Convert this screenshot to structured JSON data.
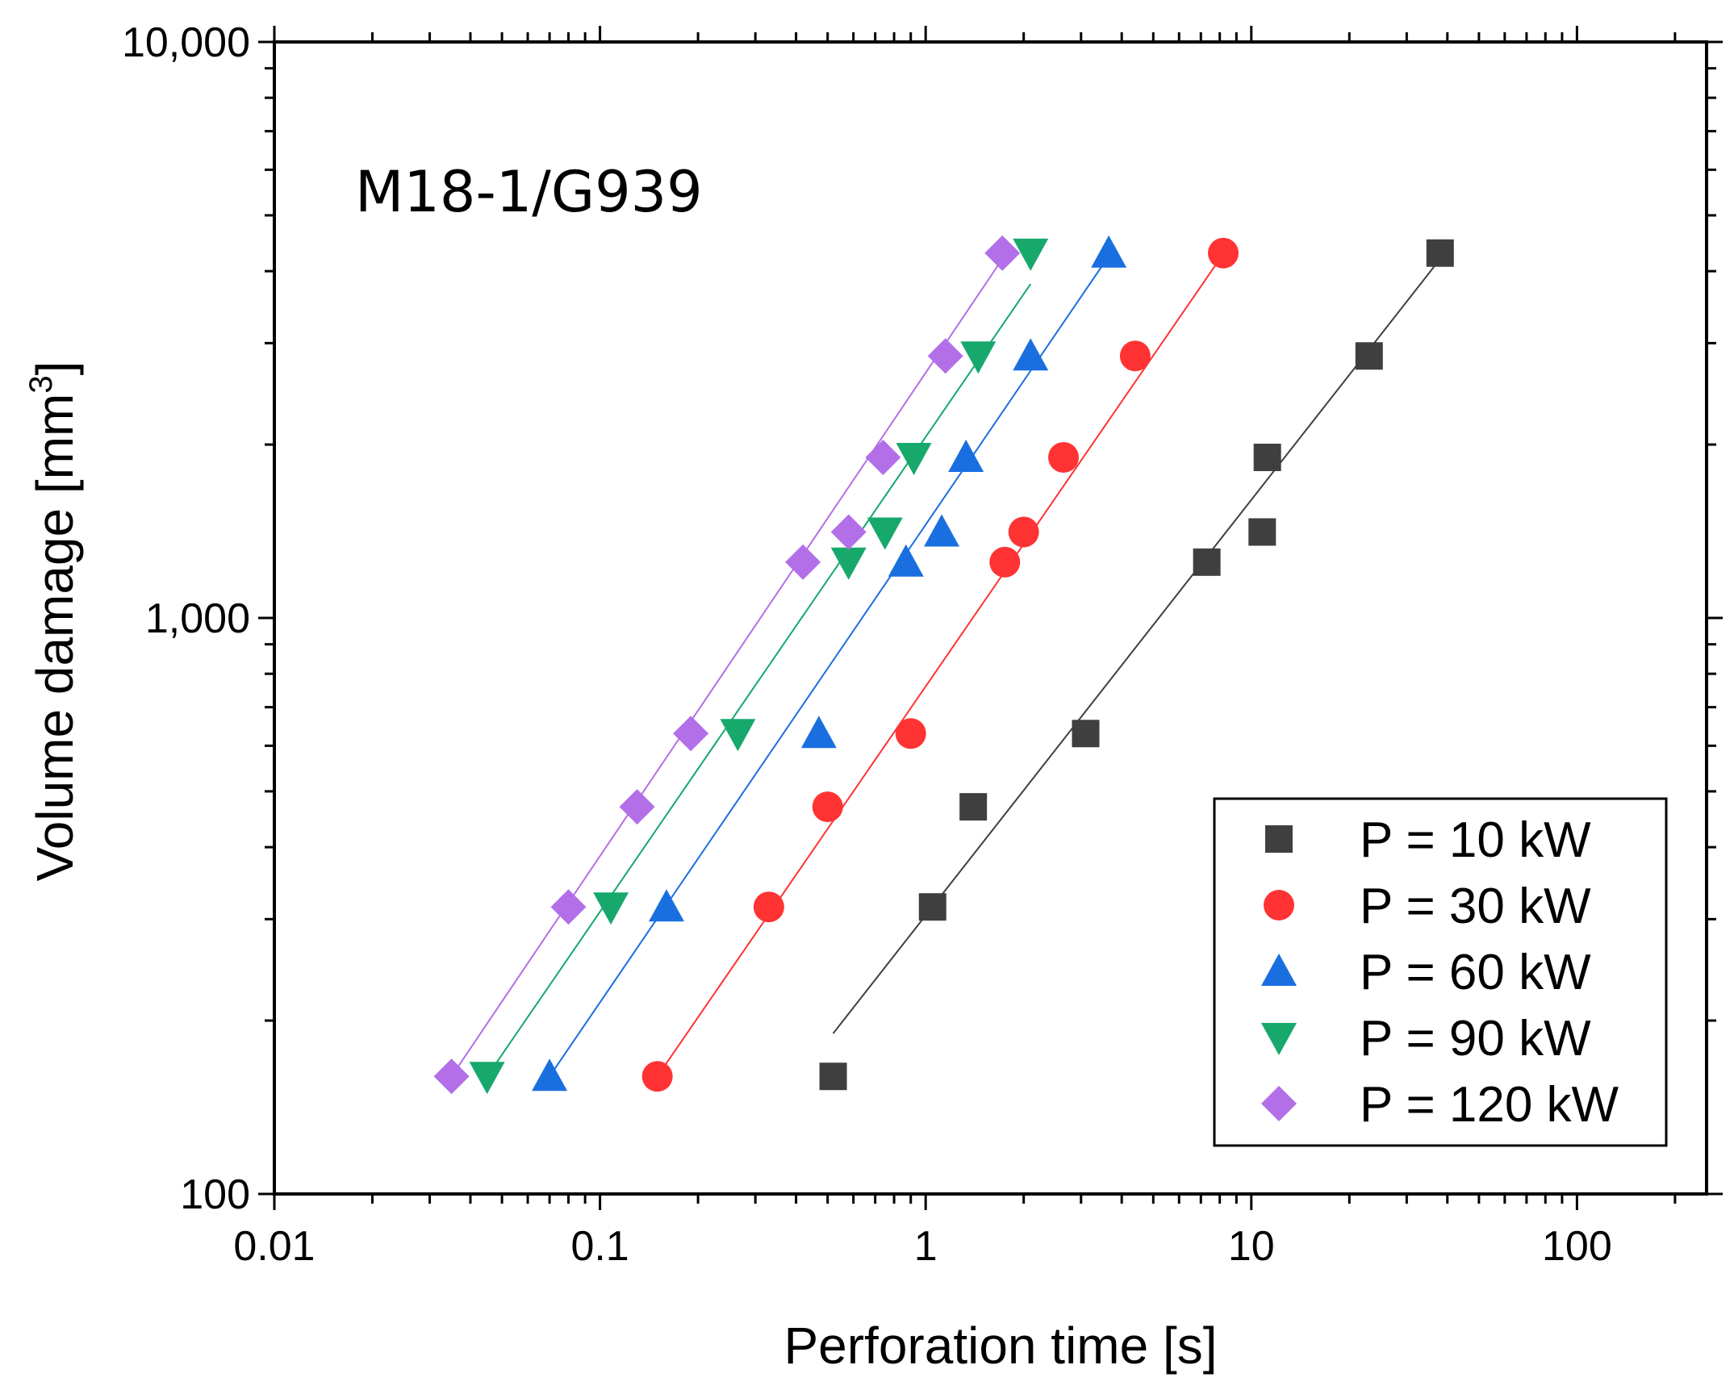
{
  "chart_data": {
    "type": "scatter",
    "annotation": "M18-1/G939",
    "xlabel": "Perforation time [s]",
    "ylabel": "Volume damage [mm",
    "ylabel_sup": "3",
    "ylabel_close": "]",
    "x_scale": "log",
    "y_scale": "log",
    "xlim": [
      0.01,
      250
    ],
    "ylim": [
      100,
      10000
    ],
    "x_ticks": [
      0.01,
      0.1,
      1,
      10,
      100
    ],
    "x_tick_labels": [
      "0.01",
      "0.1",
      "1",
      "10",
      "100"
    ],
    "y_ticks": [
      100,
      1000,
      10000
    ],
    "y_tick_labels": [
      "100",
      "1,000",
      "10,000"
    ],
    "grid": false,
    "legend_position": "bottom-right",
    "series": [
      {
        "name": "P = 10 kW",
        "color": "#3f3f3f",
        "marker": "square",
        "x": [
          0.52,
          1.05,
          1.4,
          3.1,
          7.3,
          10.8,
          11.2,
          23,
          38
        ],
        "y": [
          160,
          315,
          470,
          630,
          1250,
          1410,
          1900,
          2850,
          4300
        ],
        "fit": {
          "x": [
            0.52,
            38
          ],
          "y": [
            190,
            4200
          ]
        }
      },
      {
        "name": "P = 30 kW",
        "color": "#ff3333",
        "marker": "circle",
        "x": [
          0.15,
          0.33,
          0.5,
          0.9,
          1.75,
          2.0,
          2.65,
          4.4,
          8.2
        ],
        "y": [
          160,
          315,
          470,
          630,
          1250,
          1410,
          1900,
          2850,
          4300
        ],
        "fit": {
          "x": [
            0.15,
            8.0
          ],
          "y": [
            160,
            4200
          ]
        }
      },
      {
        "name": "P = 60 kW",
        "color": "#1a6fe0",
        "marker": "triangle-up",
        "x": [
          0.07,
          0.16,
          0.47,
          0.87,
          1.12,
          1.33,
          2.1,
          3.65
        ],
        "y": [
          160,
          315,
          630,
          1250,
          1410,
          1900,
          2850,
          4300
        ],
        "fit": {
          "x": [
            0.07,
            3.6
          ],
          "y": [
            160,
            4200
          ]
        }
      },
      {
        "name": "P = 90 kW",
        "color": "#17a86c",
        "marker": "triangle-down",
        "x": [
          0.045,
          0.108,
          0.265,
          0.58,
          0.75,
          0.92,
          1.45,
          2.1
        ],
        "y": [
          160,
          315,
          630,
          1250,
          1410,
          1900,
          2850,
          4300
        ],
        "fit": {
          "x": [
            0.045,
            2.1
          ],
          "y": [
            160,
            3800
          ]
        }
      },
      {
        "name": "P = 120 kW",
        "color": "#b36fe8",
        "marker": "diamond",
        "x": [
          0.035,
          0.08,
          0.13,
          0.19,
          0.42,
          0.58,
          0.74,
          1.15,
          1.72
        ],
        "y": [
          160,
          315,
          470,
          630,
          1250,
          1410,
          1900,
          2850,
          4300
        ],
        "fit": {
          "x": [
            0.035,
            1.72
          ],
          "y": [
            160,
            4200
          ]
        }
      }
    ]
  }
}
